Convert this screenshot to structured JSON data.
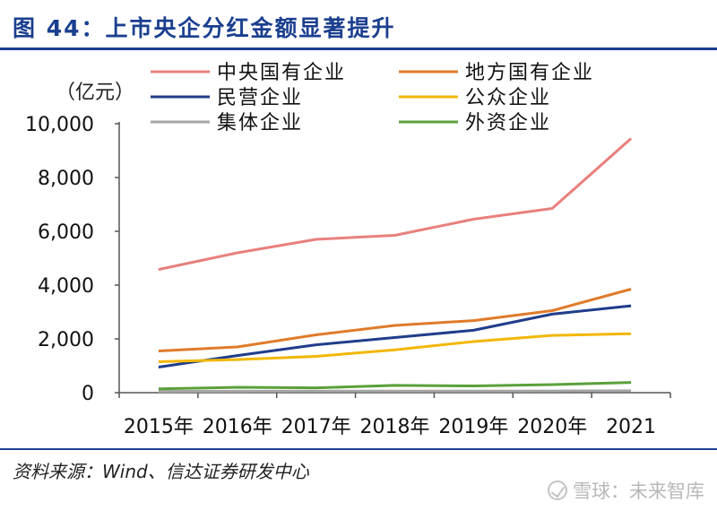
{
  "title": "图 44：上市央企分红金额显著提升",
  "source": "资料来源：Wind、信达证券研发中心",
  "watermark": "雪球：未来智库",
  "chart_data": {
    "type": "line",
    "unit_label": "（亿元）",
    "categories": [
      "2015年",
      "2016年",
      "2017年",
      "2018年",
      "2019年",
      "2020年",
      "2021"
    ],
    "ylim": [
      0,
      10000
    ],
    "yticks": [
      0,
      2000,
      4000,
      6000,
      8000,
      10000
    ],
    "ytick_labels": [
      "0",
      "2,000",
      "4,000",
      "6,000",
      "8,000",
      "10,000"
    ],
    "grid": false,
    "legend_position": "top",
    "series": [
      {
        "name": "中央国有企业",
        "color": "#e8807e",
        "values": [
          4580,
          5200,
          5700,
          5850,
          6450,
          6850,
          9450
        ]
      },
      {
        "name": "地方国有企业",
        "color": "#e07b2a",
        "values": [
          1550,
          1700,
          2150,
          2500,
          2680,
          3050,
          3850
        ]
      },
      {
        "name": "民营企业",
        "color": "#1f3d8a",
        "values": [
          950,
          1380,
          1780,
          2050,
          2320,
          2920,
          3230
        ]
      },
      {
        "name": "公众企业",
        "color": "#f2b705",
        "values": [
          1150,
          1230,
          1350,
          1590,
          1900,
          2130,
          2190
        ]
      },
      {
        "name": "集体企业",
        "color": "#a6a6a6",
        "values": [
          50,
          55,
          60,
          60,
          60,
          65,
          70
        ]
      },
      {
        "name": "外资企业",
        "color": "#5ba03a",
        "values": [
          140,
          200,
          180,
          270,
          250,
          300,
          380
        ]
      }
    ]
  }
}
